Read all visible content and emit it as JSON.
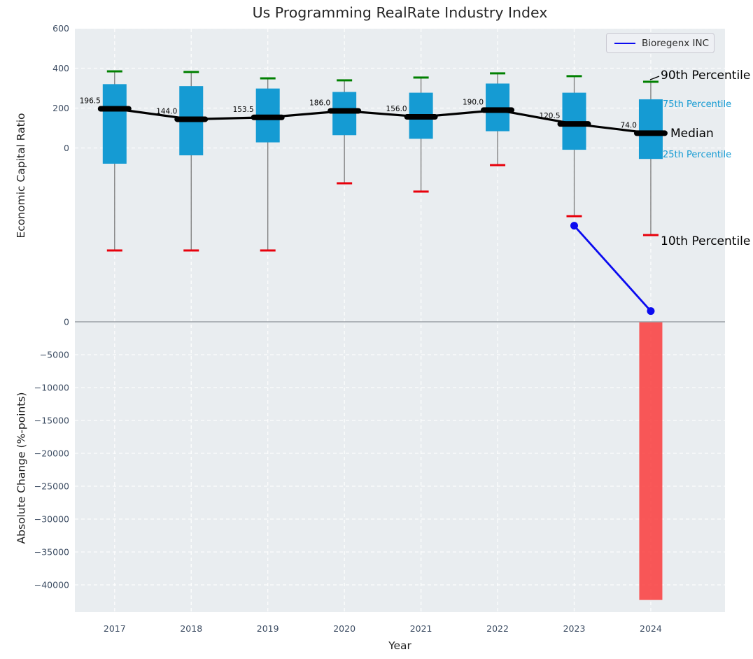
{
  "title": "Us Programming RealRate Industry Index",
  "legend": {
    "label": "Bioregenx INC"
  },
  "axes": {
    "top": {
      "ylabel": "Economic Capital Ratio",
      "yticks": [
        600,
        400,
        200,
        0
      ],
      "ylim": [
        -880,
        600
      ]
    },
    "bottom": {
      "ylabel": "Absolute Change (%-points)",
      "yticks": [
        0,
        -5000,
        -10000,
        -15000,
        -20000,
        -25000,
        -30000,
        -35000,
        -40000
      ],
      "ylim": [
        -44000,
        0
      ]
    },
    "x": {
      "label": "Year",
      "ticks": [
        "2017",
        "2018",
        "2019",
        "2020",
        "2021",
        "2022",
        "2023",
        "2024"
      ]
    }
  },
  "annotations": [
    {
      "text": "90th Percentile",
      "color": "#000000",
      "size": 17
    },
    {
      "text": "75th Percentile",
      "color": "#159bd3",
      "size": 13
    },
    {
      "text": "Median",
      "color": "#000000",
      "size": 17
    },
    {
      "text": "25th Percentile",
      "color": "#159bd3",
      "size": 13
    },
    {
      "text": "10th Percentile",
      "color": "#000000",
      "size": 17
    }
  ],
  "chart_data": {
    "type": "boxplot+line+bar",
    "title": "Us Programming RealRate Industry Index",
    "xlabel": "Year",
    "categories": [
      "2017",
      "2018",
      "2019",
      "2020",
      "2021",
      "2022",
      "2023",
      "2024"
    ],
    "box_series": {
      "p90": [
        384,
        381,
        349,
        339,
        353,
        374,
        360,
        332
      ],
      "p75": [
        320,
        310,
        298,
        281,
        277,
        323,
        277,
        244
      ],
      "median": [
        196.5,
        144.0,
        153.5,
        186.0,
        156.0,
        190.0,
        120.5,
        74.0
      ],
      "p25": [
        -79,
        -37,
        28,
        64,
        46,
        84,
        -9,
        -55
      ],
      "p10": [
        -514,
        -514,
        -514,
        -177,
        -219,
        -86,
        -342,
        -437
      ]
    },
    "median_labels": [
      "196.5",
      "144.0",
      "153.5",
      "186.0",
      "156.0",
      "190.0",
      "120.5",
      "74.0"
    ],
    "company_line": {
      "name": "Bioregenx INC",
      "x": [
        "2023",
        "2024"
      ],
      "values": [
        -390,
        -818
      ]
    },
    "change_bar": {
      "x": "2024",
      "value": -42300
    },
    "layout": {
      "grid": "white dashed",
      "legend_position": "upper right"
    },
    "colors": {
      "box": "#159bd3",
      "median": "#000000",
      "p90_cap": "#008000",
      "p10_cap": "#e8000b",
      "whisker": "#7a7a7a",
      "company_line": "#0b0bf0",
      "change_bar": "#f94141",
      "plot_bg": "#e9edf0",
      "grid": "#ffffff",
      "tick_label": "#3d4d63",
      "divider": "#9aa0a6"
    }
  }
}
